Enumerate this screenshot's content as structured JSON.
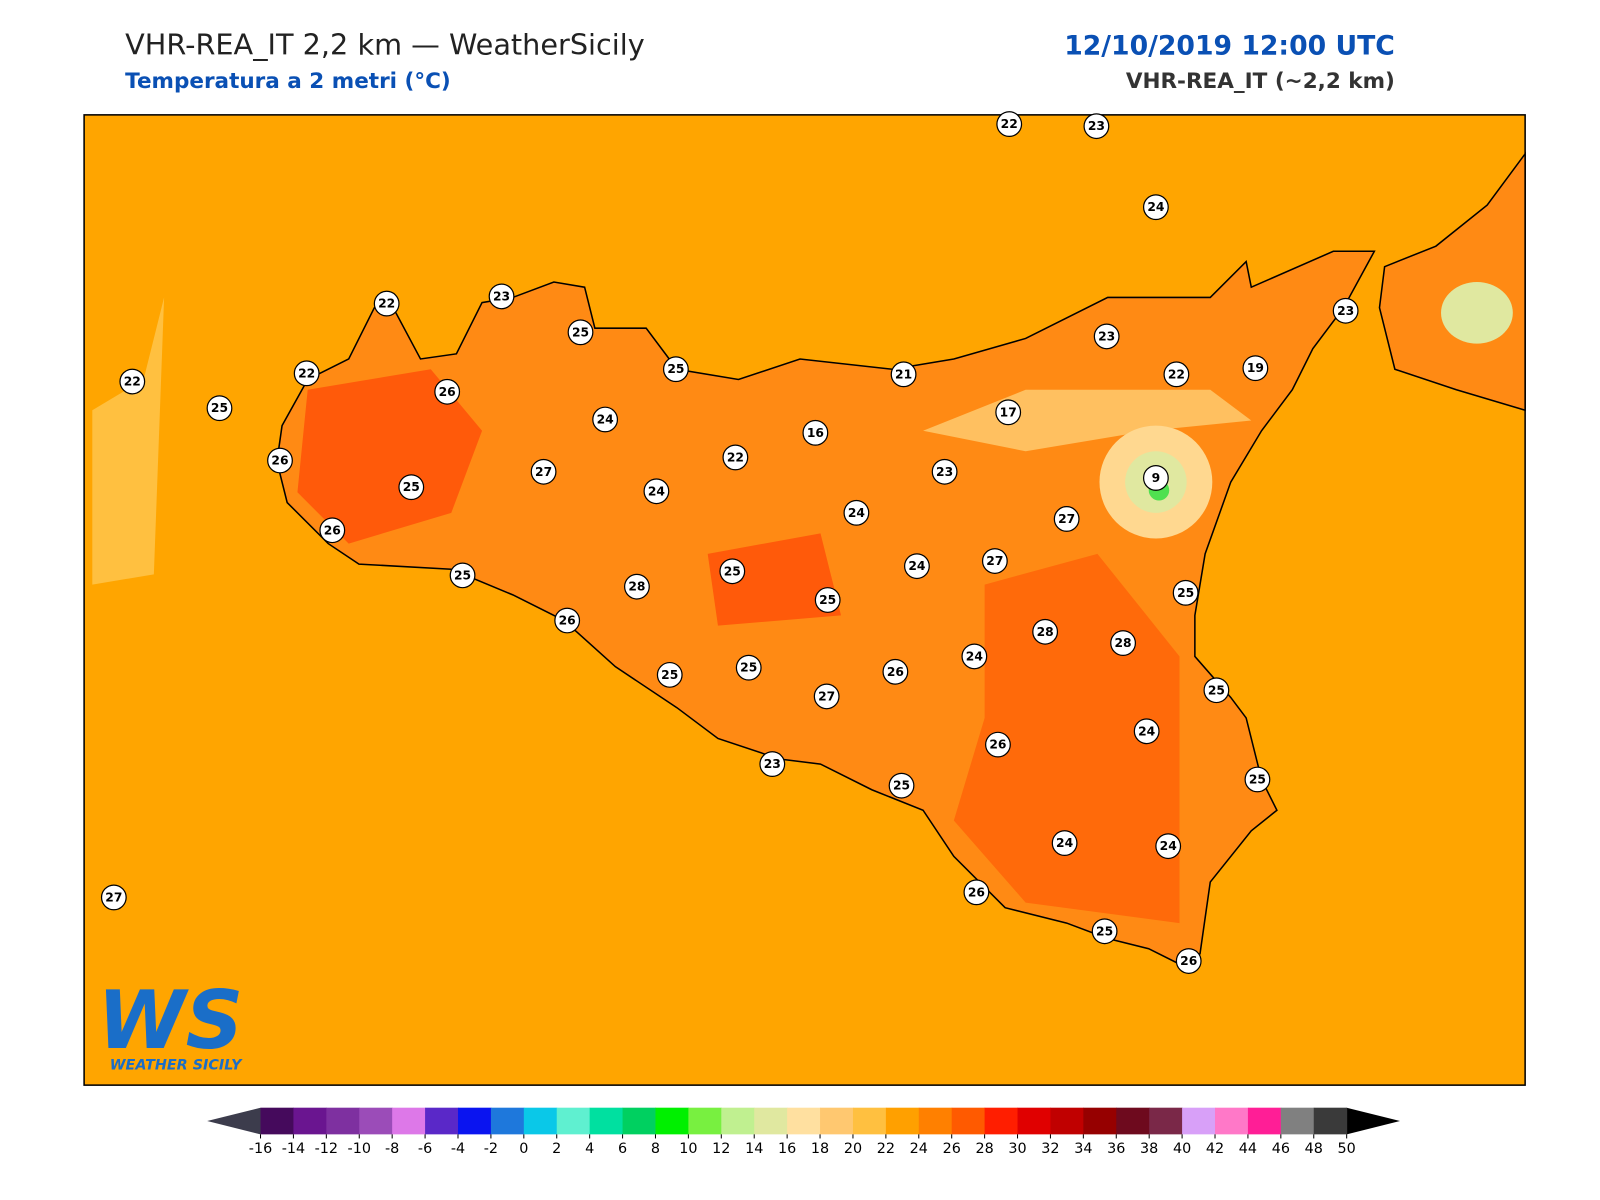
{
  "header": {
    "title": "VHR-REA_IT 2,2 km — WeatherSicily",
    "subtitle": "Temperatura a 2 metri (°C)",
    "datetime": "12/10/2019 12:00 UTC",
    "model": "VHR-REA_IT (~2,2 km)"
  },
  "logo": {
    "mark": "WS",
    "text": "WEATHER SICILY"
  },
  "stations": [
    22,
    23,
    24,
    22,
    23,
    25,
    25,
    21,
    23,
    22,
    19,
    23,
    22,
    22,
    25,
    26,
    24,
    16,
    22,
    17,
    23,
    9,
    26,
    25,
    27,
    24,
    24,
    27,
    26,
    25,
    25,
    28,
    25,
    24,
    27,
    25,
    26,
    28,
    28,
    24,
    26,
    25,
    25,
    27,
    25,
    24,
    26,
    23,
    25,
    25,
    24,
    24,
    27,
    26,
    25,
    26
  ],
  "colorbar": {
    "ticks": [
      -16,
      -14,
      -12,
      -10,
      -8,
      -6,
      -4,
      -2,
      0,
      2,
      4,
      6,
      8,
      10,
      12,
      14,
      16,
      18,
      20,
      22,
      24,
      26,
      28,
      30,
      32,
      34,
      36,
      38,
      40,
      42,
      44,
      46,
      48,
      50
    ],
    "colors": [
      "#450a5c",
      "#6a1590",
      "#7e30a0",
      "#9b4cb8",
      "#dd78e8",
      "#5a28c8",
      "#0a14f0",
      "#1e78dc",
      "#0ac8e8",
      "#5ff0d0",
      "#00e0a0",
      "#00d060",
      "#00f000",
      "#78f040",
      "#c0f090",
      "#e0e8a0",
      "#ffe0a0",
      "#ffc870",
      "#ffc040",
      "#ffa000",
      "#ff8000",
      "#ff5a00",
      "#ff1e00",
      "#e00000",
      "#c00000",
      "#960000",
      "#6e0a1e",
      "#7a2848",
      "#d8a0f8",
      "#ff78c8",
      "#ff1e96",
      "#808080",
      "#3a3a3a"
    ],
    "under": "#3c3c4c",
    "over": "#000000"
  }
}
